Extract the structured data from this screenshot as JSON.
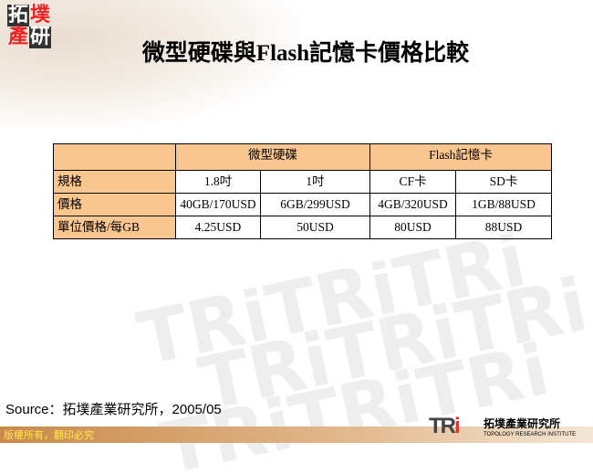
{
  "logo": {
    "chars": [
      "拓",
      "墣",
      "產",
      "研"
    ]
  },
  "title": "微型硬碟與Flash記憶卡價格比較",
  "table": {
    "groups": [
      "微型硬碟",
      "Flash記憶卡"
    ],
    "rows": [
      {
        "label": "規格",
        "cells": [
          "1.8吋",
          "1吋",
          "CF卡",
          "SD卡"
        ]
      },
      {
        "label": "價格",
        "cells": [
          "40GB/170USD",
          "6GB/299USD",
          "4GB/320USD",
          "1GB/88USD"
        ]
      },
      {
        "label": "單位價格/每GB",
        "cells": [
          "4.25USD",
          "50USD",
          "80USD",
          "88USD"
        ]
      }
    ]
  },
  "source": "Source：拓墣產業研究所，2005/05",
  "footer": {
    "copyright": "版權所有，翻印必究",
    "brand_logo": "TRi",
    "brand_name": "拓墣產業研究所",
    "brand_en": "TOPOLOGY RESEARCH INSTITUTE"
  },
  "colors": {
    "header_bg": "#f9c690",
    "footer_text": "#ffe84a"
  }
}
